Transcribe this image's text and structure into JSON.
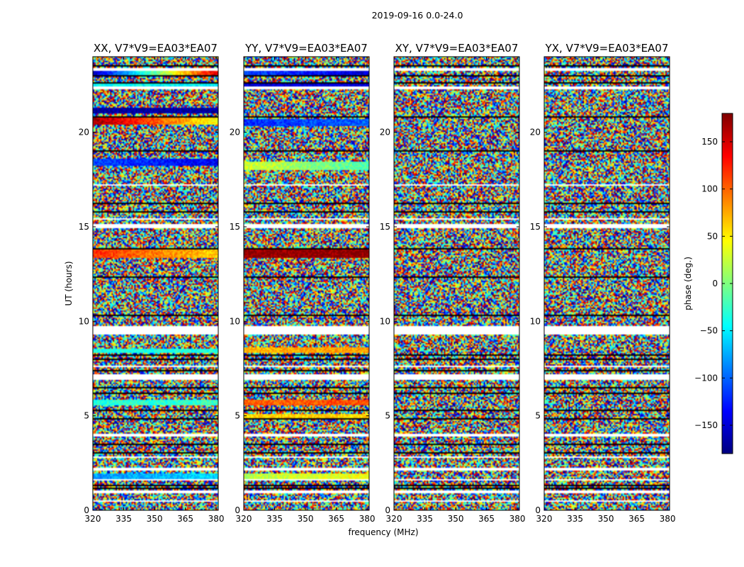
{
  "figure": {
    "suptitle": "2019-09-16 0.0-24.0"
  },
  "chart_data": [
    {
      "type": "heatmap",
      "title": "XX, V7*V9=EA03*EA07",
      "xlabel": "",
      "ylabel": "UT (hours)",
      "xlim": [
        320,
        381
      ],
      "ylim": [
        0,
        24
      ],
      "xticks": [
        320,
        335,
        350,
        365,
        380
      ],
      "yticks": [
        0,
        5,
        10,
        15,
        20
      ],
      "blank_bands_hours": [
        [
          0.45,
          0.5
        ],
        [
          0.95,
          1.0
        ],
        [
          1.6,
          1.65
        ],
        [
          2.1,
          2.2
        ],
        [
          2.8,
          2.85
        ],
        [
          3.95,
          4.0
        ],
        [
          6.95,
          7.15
        ],
        [
          7.6,
          7.65
        ],
        [
          9.35,
          9.7
        ],
        [
          14.95,
          15.1
        ],
        [
          15.4,
          15.45
        ],
        [
          17.2,
          17.25
        ],
        [
          22.3,
          22.4
        ],
        [
          23.3,
          23.35
        ]
      ],
      "dark_lines_hours": [
        1.2,
        1.35,
        3.05,
        3.55,
        4.85,
        5.3,
        6.25,
        6.55,
        7.45,
        8.05,
        8.25,
        10.35,
        12.35,
        13.85,
        15.85,
        16.25,
        19.05,
        20.85,
        22.65,
        23.05,
        23.55
      ],
      "coherent_bands": [
        {
          "y0": 23.05,
          "y1": 23.35,
          "phase_start": -160,
          "phase_end": 150
        },
        {
          "y0": 22.35,
          "y1": 22.55,
          "phase_start": -40,
          "phase_end": -50
        },
        {
          "y0": 21.05,
          "y1": 21.25,
          "phase_start": -170,
          "phase_end": -170
        },
        {
          "y0": 20.45,
          "y1": 20.75,
          "phase_start": 170,
          "phase_end": 40
        },
        {
          "y0": 18.25,
          "y1": 18.55,
          "phase_start": -110,
          "phase_end": -140
        },
        {
          "y0": 13.35,
          "y1": 13.75,
          "phase_start": 120,
          "phase_end": 60
        },
        {
          "y0": 8.35,
          "y1": 8.55,
          "phase_start": -35,
          "phase_end": -35
        },
        {
          "y0": 5.55,
          "y1": 5.85,
          "phase_start": -30,
          "phase_end": -25
        },
        {
          "y0": 1.65,
          "y1": 1.9,
          "phase_start": -80,
          "phase_end": -60
        }
      ]
    },
    {
      "type": "heatmap",
      "title": "YY, V7*V9=EA03*EA07",
      "xlabel": "frequency (MHz)",
      "ylabel": "",
      "xlim": [
        320,
        381
      ],
      "ylim": [
        0,
        24
      ],
      "xticks": [
        320,
        335,
        350,
        365,
        380
      ],
      "yticks": [
        0,
        5,
        10,
        15,
        20
      ],
      "blank_bands_hours": [
        [
          0.45,
          0.5
        ],
        [
          0.95,
          1.0
        ],
        [
          1.6,
          1.65
        ],
        [
          2.1,
          2.2
        ],
        [
          2.8,
          2.85
        ],
        [
          3.95,
          4.0
        ],
        [
          6.95,
          7.15
        ],
        [
          7.6,
          7.65
        ],
        [
          9.35,
          9.7
        ],
        [
          14.95,
          15.1
        ],
        [
          15.4,
          15.45
        ],
        [
          17.2,
          17.25
        ],
        [
          22.3,
          22.4
        ],
        [
          23.3,
          23.35
        ]
      ],
      "dark_lines_hours": [
        1.2,
        1.35,
        3.05,
        3.55,
        4.85,
        5.3,
        6.25,
        6.55,
        7.45,
        8.05,
        8.25,
        10.35,
        12.35,
        13.85,
        15.85,
        16.25,
        19.05,
        20.85,
        22.65,
        23.05,
        23.55
      ],
      "coherent_bands": [
        {
          "y0": 23.05,
          "y1": 23.35,
          "phase_start": -110,
          "phase_end": -150
        },
        {
          "y0": 22.35,
          "y1": 22.55,
          "phase_start": -150,
          "phase_end": -150
        },
        {
          "y0": 20.35,
          "y1": 20.65,
          "phase_start": -120,
          "phase_end": -100
        },
        {
          "y0": 18.05,
          "y1": 18.45,
          "phase_start": 30,
          "phase_end": -20
        },
        {
          "y0": 13.35,
          "y1": 13.75,
          "phase_start": 175,
          "phase_end": 175
        },
        {
          "y0": 8.35,
          "y1": 8.6,
          "phase_start": 70,
          "phase_end": 80
        },
        {
          "y0": 5.55,
          "y1": 5.85,
          "phase_start": 100,
          "phase_end": 110
        },
        {
          "y0": 4.85,
          "y1": 5.05,
          "phase_start": 60,
          "phase_end": 60
        },
        {
          "y0": 1.65,
          "y1": 1.9,
          "phase_start": 20,
          "phase_end": 40
        }
      ]
    },
    {
      "type": "heatmap",
      "title": "XY, V7*V9=EA03*EA07",
      "xlabel": "",
      "ylabel": "",
      "xlim": [
        320,
        381
      ],
      "ylim": [
        0,
        24
      ],
      "xticks": [
        320,
        335,
        350,
        365,
        380
      ],
      "yticks": [
        0,
        5,
        10,
        15,
        20
      ],
      "blank_bands_hours": [
        [
          0.45,
          0.5
        ],
        [
          0.95,
          1.0
        ],
        [
          1.6,
          1.65
        ],
        [
          2.1,
          2.2
        ],
        [
          2.8,
          2.85
        ],
        [
          3.95,
          4.0
        ],
        [
          6.95,
          7.15
        ],
        [
          7.6,
          7.65
        ],
        [
          9.35,
          9.7
        ],
        [
          14.95,
          15.1
        ],
        [
          15.4,
          15.45
        ],
        [
          17.2,
          17.25
        ],
        [
          22.3,
          22.4
        ],
        [
          23.3,
          23.35
        ]
      ],
      "dark_lines_hours": [
        1.2,
        1.35,
        3.05,
        3.55,
        4.85,
        5.3,
        6.25,
        6.55,
        7.45,
        8.05,
        8.25,
        10.35,
        12.35,
        13.85,
        15.85,
        16.25,
        19.05,
        20.85,
        22.65,
        23.05,
        23.55
      ],
      "coherent_bands": []
    },
    {
      "type": "heatmap",
      "title": "YX, V7*V9=EA03*EA07",
      "xlabel": "",
      "ylabel": "",
      "xlim": [
        320,
        381
      ],
      "ylim": [
        0,
        24
      ],
      "xticks": [
        320,
        335,
        350,
        365,
        380
      ],
      "yticks": [
        0,
        5,
        10,
        15,
        20
      ],
      "blank_bands_hours": [
        [
          0.45,
          0.5
        ],
        [
          0.95,
          1.0
        ],
        [
          1.6,
          1.65
        ],
        [
          2.1,
          2.2
        ],
        [
          2.8,
          2.85
        ],
        [
          3.95,
          4.0
        ],
        [
          6.95,
          7.15
        ],
        [
          7.6,
          7.65
        ],
        [
          9.35,
          9.7
        ],
        [
          14.95,
          15.1
        ],
        [
          15.4,
          15.45
        ],
        [
          17.2,
          17.25
        ],
        [
          22.3,
          22.4
        ],
        [
          23.3,
          23.35
        ]
      ],
      "dark_lines_hours": [
        1.2,
        1.35,
        3.05,
        3.55,
        4.85,
        5.3,
        6.25,
        6.55,
        7.45,
        8.05,
        8.25,
        10.35,
        12.35,
        13.85,
        15.85,
        16.25,
        19.05,
        20.85,
        22.65,
        23.05,
        23.55
      ],
      "coherent_bands": []
    }
  ],
  "colorbar": {
    "label": "phase (deg.)",
    "colormap": "jet",
    "range": [
      -180,
      180
    ],
    "ticks": [
      150,
      100,
      50,
      0,
      -50,
      -100,
      -150
    ],
    "tick_labels": [
      "150",
      "100",
      "50",
      "0",
      "−50",
      "−100",
      "−150"
    ],
    "stops": [
      "#00007f",
      "#0000ff",
      "#007fff",
      "#00ffff",
      "#7fff7f",
      "#ffff00",
      "#ff7f00",
      "#ff0000",
      "#7f0000"
    ]
  }
}
